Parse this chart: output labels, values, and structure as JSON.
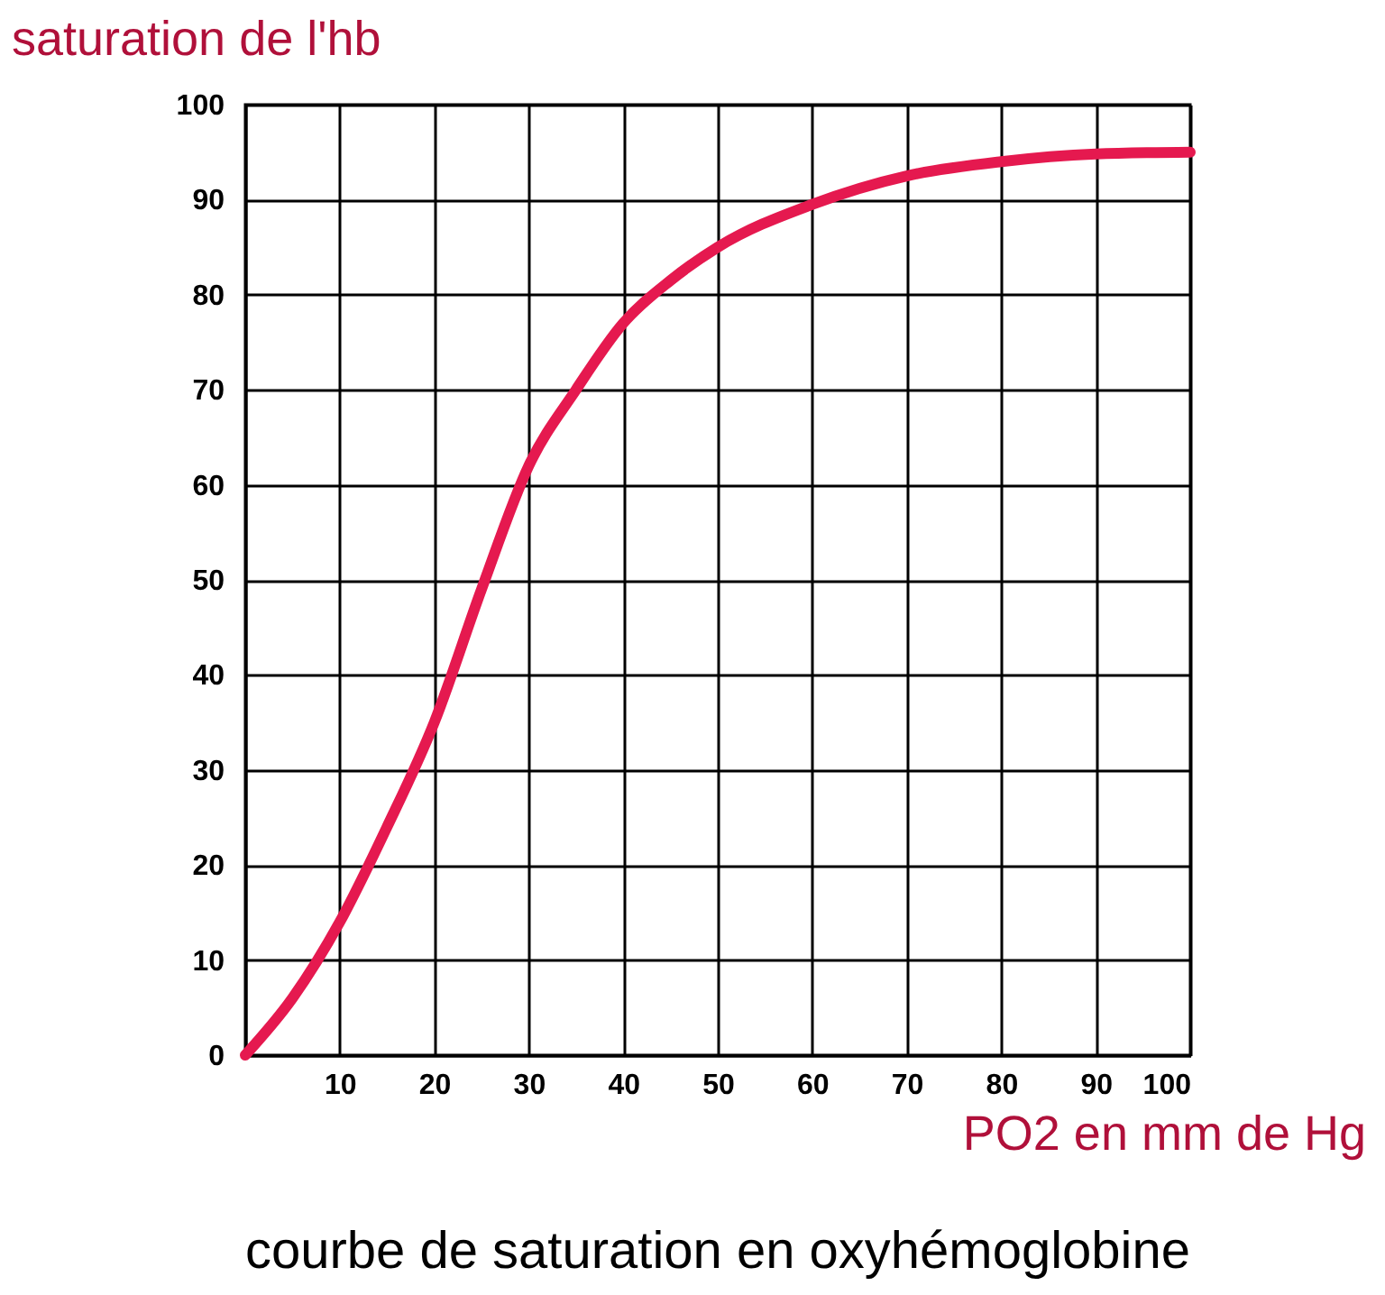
{
  "chart_data": {
    "type": "line",
    "title": "courbe de saturation en oxyhémoglobine",
    "xlabel": "PO2 en mm de Hg",
    "ylabel": "saturation de l'hb",
    "x": [
      0,
      5,
      10,
      15,
      20,
      25,
      30,
      35,
      40,
      45,
      50,
      60,
      70,
      80,
      90,
      100
    ],
    "series": [
      {
        "color": "#e5194f",
        "values": [
          0,
          6,
          14,
          24,
          35,
          49,
          62,
          70,
          77,
          81.5,
          85,
          89.5,
          92.5,
          94,
          94.8,
          95
        ]
      }
    ],
    "xlim": [
      0,
      100
    ],
    "ylim": [
      0,
      100
    ],
    "xticks": [
      {
        "value": 0,
        "label": null
      },
      10,
      20,
      30,
      40,
      50,
      60,
      70,
      80,
      90,
      100
    ],
    "yticks": [
      0,
      10,
      20,
      30,
      40,
      50,
      60,
      70,
      80,
      90,
      100
    ],
    "grid": true
  }
}
